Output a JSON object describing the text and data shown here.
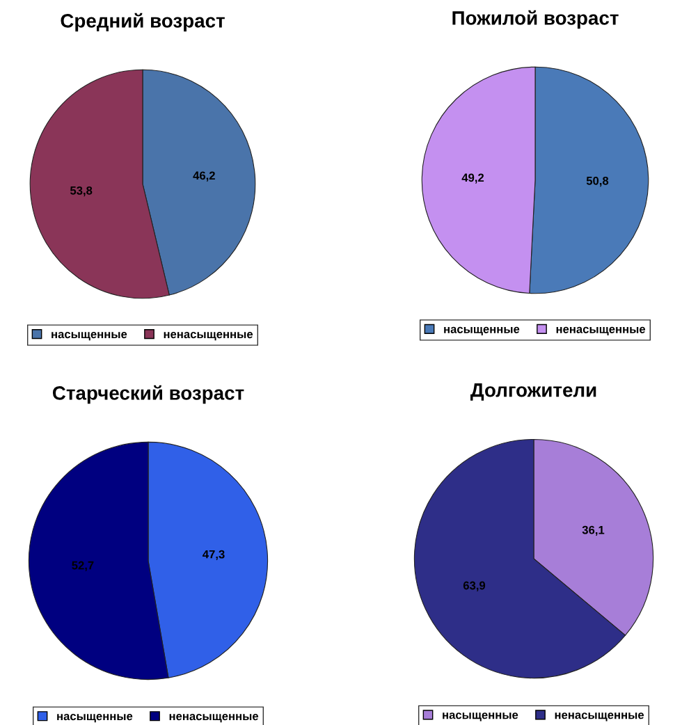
{
  "chart_data": [
    {
      "type": "pie",
      "title": "Средний возраст",
      "categories": [
        "насыщенные",
        "ненасыщенные"
      ],
      "values": [
        46.2,
        53.8
      ],
      "colors": [
        "#4a74aa",
        "#8a3558"
      ],
      "value_labels": [
        "46,2",
        "53,8"
      ],
      "legend": "bottom"
    },
    {
      "type": "pie",
      "title": "Пожилой возраст",
      "categories": [
        "насыщенные",
        "ненасыщенные"
      ],
      "values": [
        50.8,
        49.2
      ],
      "colors": [
        "#4a7ab8",
        "#c490f0"
      ],
      "value_labels": [
        "50,8",
        "49,2"
      ],
      "legend": "bottom"
    },
    {
      "type": "pie",
      "title": "Старческий возраст",
      "categories": [
        "насыщенные",
        "ненасыщенные"
      ],
      "values": [
        47.3,
        52.7
      ],
      "colors": [
        "#3060e8",
        "#000080"
      ],
      "value_labels": [
        "47,3",
        "52,7"
      ],
      "legend": "bottom"
    },
    {
      "type": "pie",
      "title": "Долгожители",
      "categories": [
        "насыщенные",
        "ненасыщенные"
      ],
      "values": [
        36.1,
        63.9
      ],
      "colors": [
        "#a77ed8",
        "#2e2e88"
      ],
      "value_labels": [
        "36,1",
        "63,9"
      ],
      "legend": "bottom"
    }
  ]
}
